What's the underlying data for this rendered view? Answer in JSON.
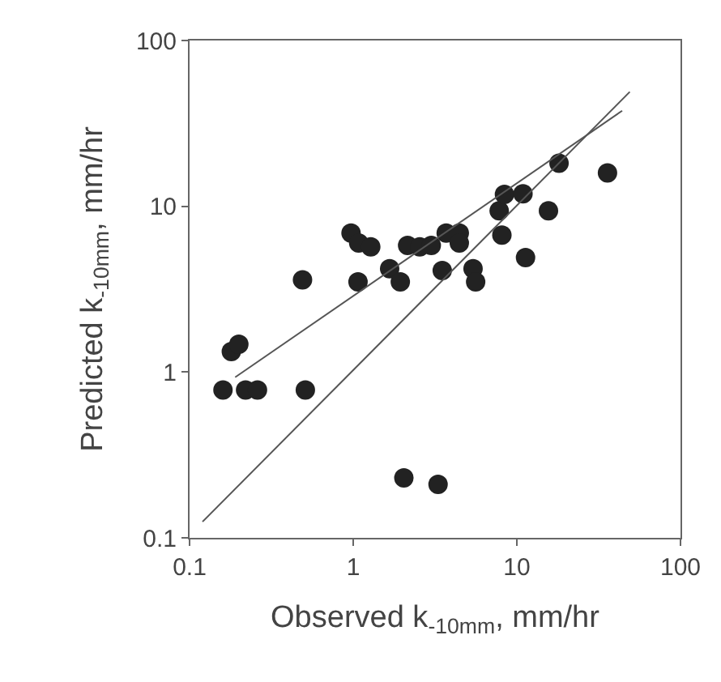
{
  "chart_data": {
    "type": "scatter",
    "xlabel": "Observed k$_{-10mm}$, mm/hr",
    "ylabel": "Predicted k$_{-10mm}$, mm/hr",
    "log": "xy",
    "marker": "circle",
    "xlim": [
      0.1,
      100
    ],
    "ylim": [
      0.1,
      100
    ],
    "xticks": [
      0.1,
      1,
      10,
      100
    ],
    "yticks": [
      0.1,
      1,
      10,
      100
    ],
    "series": [
      {
        "color": "#222222",
        "x": [
          0.16,
          0.18,
          0.2,
          0.22,
          0.26,
          0.49,
          0.51,
          0.97,
          1.08,
          1.28,
          1.07,
          1.67,
          1.94,
          2.15,
          2.55,
          3.0,
          3.7,
          4.45,
          4.45,
          3.5,
          5.4,
          5.6,
          2.04,
          3.3,
          8.1,
          7.8,
          8.4,
          10.9,
          11.3,
          15.6,
          18.1,
          35.8
        ],
        "values": [
          0.78,
          1.33,
          1.47,
          0.78,
          0.78,
          3.6,
          0.78,
          6.9,
          6.0,
          5.7,
          3.5,
          4.2,
          3.5,
          5.8,
          5.7,
          5.8,
          6.9,
          6.9,
          6.0,
          4.1,
          4.2,
          3.5,
          0.23,
          0.21,
          6.7,
          9.4,
          11.8,
          11.9,
          4.9,
          9.4,
          18.2,
          15.9
        ]
      },
      {
        "type": "line",
        "marker": "none",
        "color": "#555555",
        "x": [
          0.12,
          49
        ],
        "values": [
          0.125,
          49
        ]
      },
      {
        "type": "line",
        "marker": "none",
        "color": "#555555",
        "x": [
          0.19,
          44
        ],
        "values": [
          0.93,
          37.7
        ]
      }
    ]
  }
}
